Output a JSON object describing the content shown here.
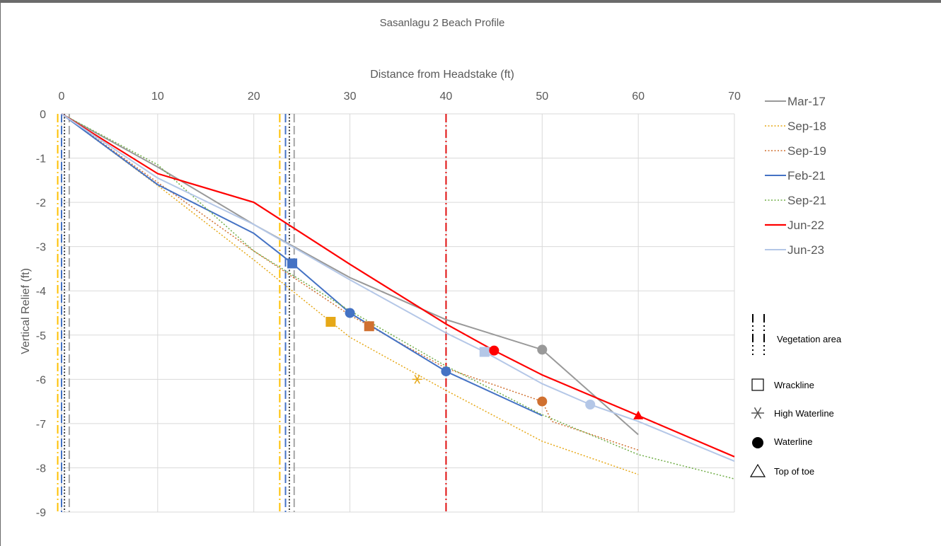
{
  "chart_data": {
    "type": "line",
    "title": "Sasanlagu 2 Beach Profile",
    "xlabel": "Distance from Headstake (ft)",
    "ylabel": "Vertical Relief  (ft)",
    "x_axis_position": "top",
    "xlim": [
      0,
      70
    ],
    "ylim": [
      -9,
      0
    ],
    "x_ticks": [
      0,
      10,
      20,
      30,
      40,
      50,
      60,
      70
    ],
    "y_ticks": [
      0,
      -1,
      -2,
      -3,
      -4,
      -5,
      -6,
      -7,
      -8,
      -9
    ],
    "grid": true,
    "legend_position": "right",
    "series": [
      {
        "name": "Mar-17",
        "color": "#999999",
        "dash": "solid",
        "width": 2,
        "points": [
          [
            0,
            0
          ],
          [
            10,
            -1.2
          ],
          [
            20,
            -2.5
          ],
          [
            30,
            -3.7
          ],
          [
            40,
            -4.65
          ],
          [
            50,
            -5.33
          ],
          [
            60,
            -7.25
          ]
        ]
      },
      {
        "name": "Sep-18",
        "color": "#E6A817",
        "dash": "dotted",
        "width": 1.5,
        "points": [
          [
            0,
            0
          ],
          [
            10,
            -1.62
          ],
          [
            20,
            -3.3
          ],
          [
            30,
            -5.05
          ],
          [
            40,
            -6.25
          ],
          [
            50,
            -7.4
          ],
          [
            60,
            -8.15
          ]
        ]
      },
      {
        "name": "Sep-19",
        "color": "#D07030",
        "dash": "dotted",
        "width": 1.5,
        "points": [
          [
            0,
            0
          ],
          [
            10,
            -1.55
          ],
          [
            20,
            -3.1
          ],
          [
            30,
            -4.55
          ],
          [
            40,
            -5.75
          ],
          [
            50,
            -6.5
          ],
          [
            51,
            -6.95
          ],
          [
            60,
            -7.6
          ]
        ]
      },
      {
        "name": "Feb-21",
        "color": "#4472C4",
        "dash": "solid",
        "width": 2,
        "points": [
          [
            0,
            0
          ],
          [
            10,
            -1.6
          ],
          [
            20,
            -2.7
          ],
          [
            24,
            -3.38
          ],
          [
            30,
            -4.5
          ],
          [
            40,
            -5.82
          ],
          [
            50,
            -6.82
          ]
        ]
      },
      {
        "name": "Sep-21",
        "color": "#70AD47",
        "dash": "dotted",
        "width": 1.5,
        "points": [
          [
            0,
            0
          ],
          [
            10,
            -1.15
          ],
          [
            20,
            -3.1
          ],
          [
            30,
            -4.45
          ],
          [
            40,
            -5.7
          ],
          [
            50,
            -6.8
          ],
          [
            60,
            -7.7
          ],
          [
            70,
            -8.25
          ]
        ]
      },
      {
        "name": "Jun-22",
        "color": "#FF0000",
        "dash": "solid",
        "width": 2.2,
        "points": [
          [
            0,
            0
          ],
          [
            10,
            -1.35
          ],
          [
            20,
            -2.0
          ],
          [
            30,
            -3.4
          ],
          [
            40,
            -4.75
          ],
          [
            45,
            -5.35
          ],
          [
            50,
            -5.9
          ],
          [
            60,
            -6.82
          ],
          [
            70,
            -7.75
          ]
        ]
      },
      {
        "name": "Jun-23",
        "color": "#B4C7E7",
        "dash": "solid",
        "width": 2,
        "points": [
          [
            0,
            0
          ],
          [
            10,
            -1.45
          ],
          [
            20,
            -2.5
          ],
          [
            30,
            -3.75
          ],
          [
            40,
            -4.95
          ],
          [
            44,
            -5.38
          ],
          [
            50,
            -6.1
          ],
          [
            55,
            -6.57
          ],
          [
            60,
            -6.95
          ],
          [
            70,
            -7.85
          ]
        ]
      }
    ],
    "markers": [
      {
        "type": "square",
        "x": 24,
        "y": -3.38,
        "color": "#4472C4"
      },
      {
        "type": "square",
        "x": 28,
        "y": -4.7,
        "color": "#E6A817"
      },
      {
        "type": "square",
        "x": 32,
        "y": -4.8,
        "color": "#D07030"
      },
      {
        "type": "square",
        "x": 44,
        "y": -5.38,
        "color": "#B4C7E7"
      },
      {
        "type": "circle",
        "x": 30,
        "y": -4.5,
        "color": "#4472C4"
      },
      {
        "type": "circle",
        "x": 40,
        "y": -5.82,
        "color": "#4472C4"
      },
      {
        "type": "circle",
        "x": 45,
        "y": -5.35,
        "color": "#FF0000"
      },
      {
        "type": "circle",
        "x": 50,
        "y": -5.33,
        "color": "#999999"
      },
      {
        "type": "circle",
        "x": 50,
        "y": -6.5,
        "color": "#D07030"
      },
      {
        "type": "circle",
        "x": 55,
        "y": -6.57,
        "color": "#B4C7E7"
      },
      {
        "type": "star",
        "x": 37,
        "y": -6.0,
        "color": "#E6A817"
      },
      {
        "type": "triangle",
        "x": 60,
        "y": -6.82,
        "color": "#FF0000"
      }
    ],
    "vertical_lines": [
      {
        "x": -0.4,
        "color": "#FFC000",
        "style": "dashdot"
      },
      {
        "x": 0.0,
        "color": "#4472C4",
        "style": "dashed"
      },
      {
        "x": 0.3,
        "color": "#404040",
        "style": "dotted"
      },
      {
        "x": 0.8,
        "color": "#A5A5A5",
        "style": "dashed"
      },
      {
        "x": 22.7,
        "color": "#FFC000",
        "style": "dashdot"
      },
      {
        "x": 23.3,
        "color": "#4472C4",
        "style": "dashed"
      },
      {
        "x": 23.7,
        "color": "#404040",
        "style": "dotted"
      },
      {
        "x": 24.2,
        "color": "#A5A5A5",
        "style": "dashed"
      },
      {
        "x": 40.0,
        "color": "#E01010",
        "style": "dashdot"
      }
    ],
    "symbol_legend": [
      {
        "symbol": "vegetation",
        "label": "Vegetation area"
      },
      {
        "symbol": "square",
        "label": "Wrackline"
      },
      {
        "symbol": "star",
        "label": "High Waterline"
      },
      {
        "symbol": "circle",
        "label": "Waterline"
      },
      {
        "symbol": "triangle",
        "label": "Top of toe"
      }
    ]
  }
}
